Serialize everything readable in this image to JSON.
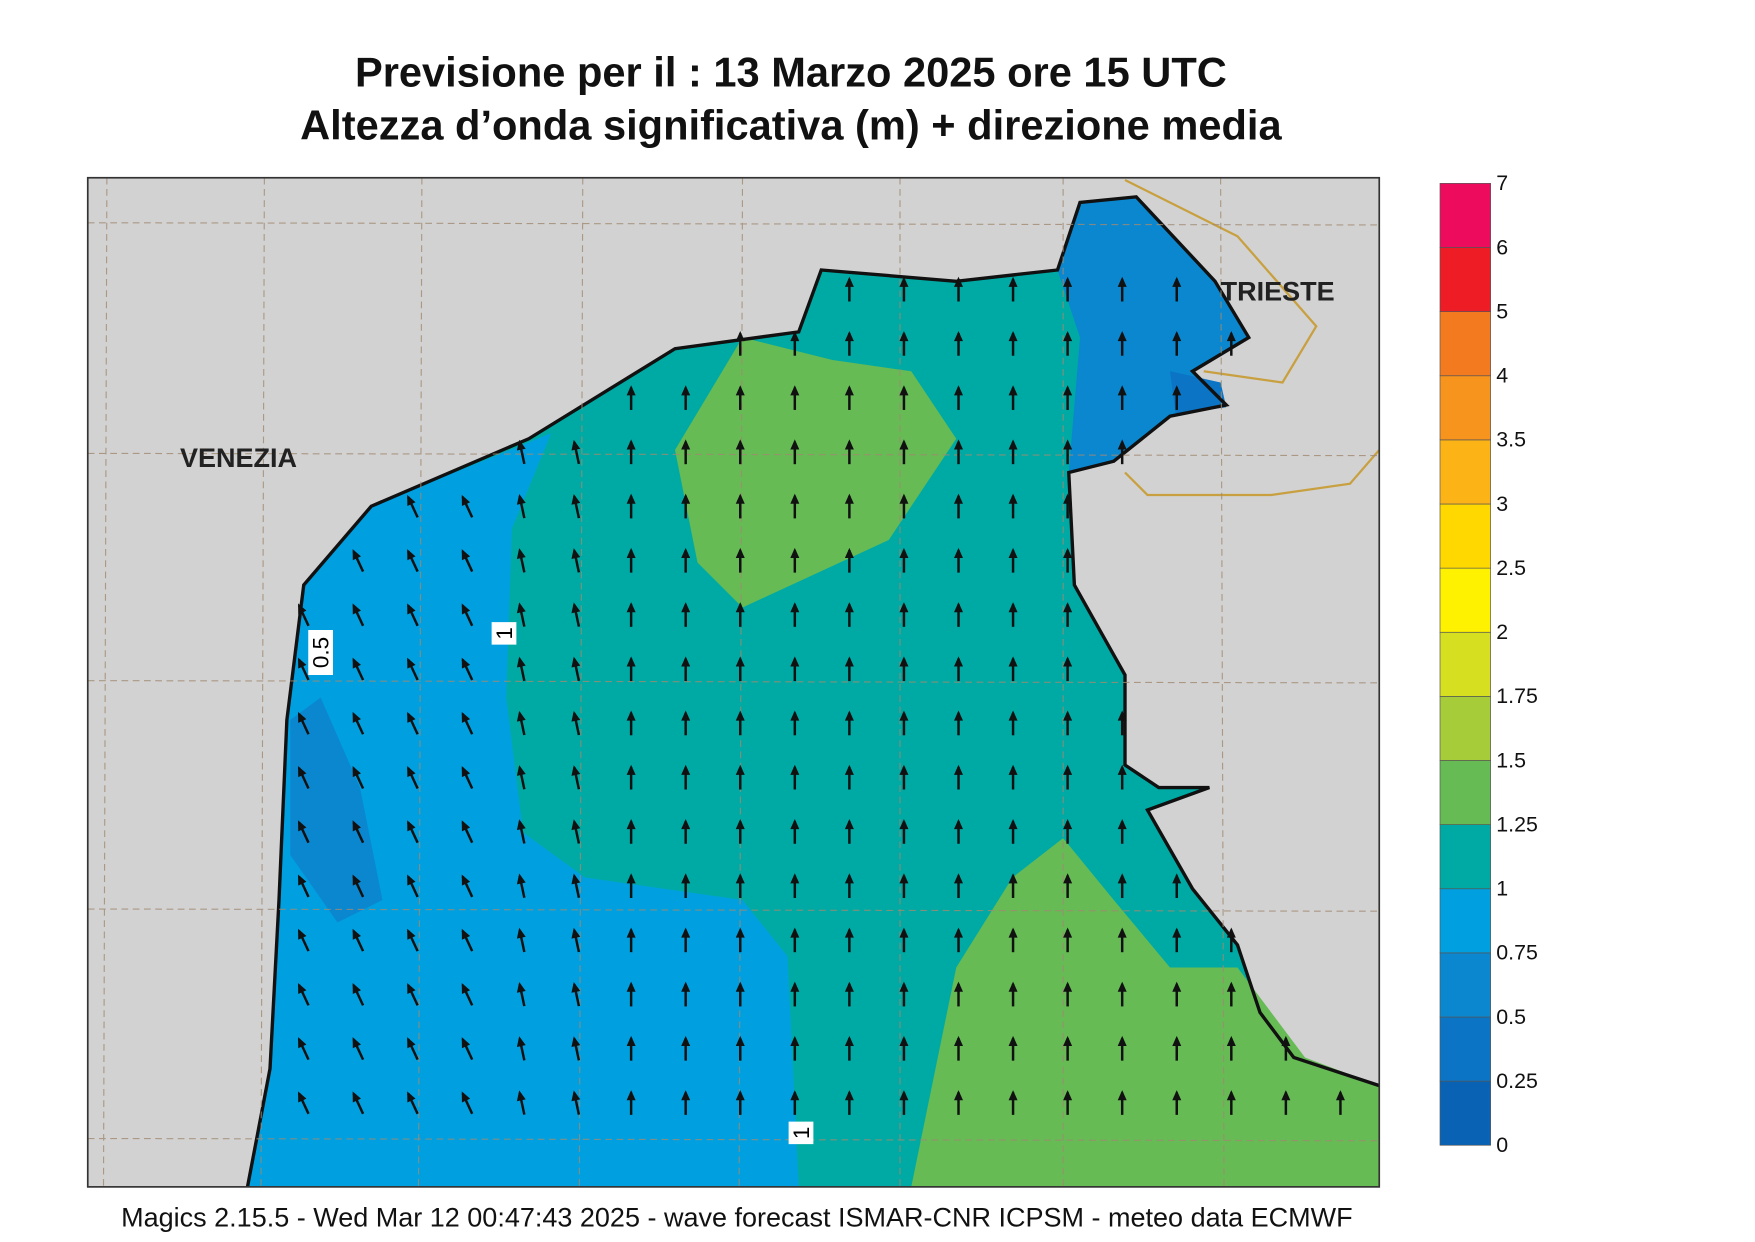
{
  "header": {
    "title": "Previsione per il  :  13   Marzo   2025   ore 15 UTC",
    "subtitle": "Altezza d’onda significativa (m) + direzione media"
  },
  "map": {
    "places": [
      "VENEZIA",
      "TRIESTE"
    ],
    "contour_labels": [
      "0.5",
      "1",
      "1"
    ]
  },
  "colorbar": {
    "labels": [
      "0",
      "0.25",
      "0.5",
      "0.75",
      "1",
      "1.25",
      "1.5",
      "1.75",
      "2",
      "2.5",
      "3",
      "3.5",
      "4",
      "5",
      "6",
      "7"
    ],
    "colors": [
      "#0a62b4",
      "#0b74c4",
      "#0b87d0",
      "#00a0e0",
      "#00aaa4",
      "#66bb55",
      "#a6cc3a",
      "#d6e020",
      "#fff200",
      "#ffd800",
      "#fcb316",
      "#f7941d",
      "#f47a20",
      "#ee1c25",
      "#ec0b5c"
    ]
  },
  "footer": "Magics 2.15.5 - Wed Mar 12 00:47:43 2025 - wave forecast  ISMAR-CNR  ICPSM - meteo data   ECMWF"
}
